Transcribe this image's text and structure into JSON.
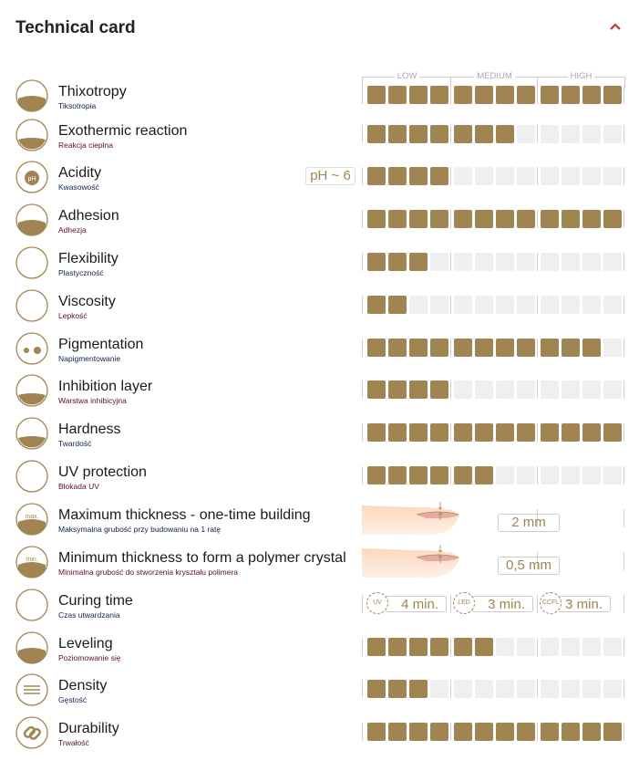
{
  "header": {
    "title": "Technical card",
    "collapse_icon": "chevron-up-icon",
    "accent": "#c0392b"
  },
  "scale": {
    "labels": [
      "LOW",
      "MEDIUM",
      "HIGH"
    ],
    "total_boxes": 12,
    "filled_color": "#a08552",
    "empty_color": "#efefef"
  },
  "rows": [
    {
      "name": "Thixotropy",
      "sub": "Tiksotropia",
      "icon": "thixotropy-icon",
      "level": 12
    },
    {
      "name": "Exothermic reaction",
      "sub": "Reakcja cieplna",
      "icon": "heat-icon",
      "level": 7
    },
    {
      "name": "Acidity",
      "sub": "Kwasowość",
      "icon": "ph-icon",
      "level": 4,
      "badge": "pH ~ 6"
    },
    {
      "name": "Adhesion",
      "sub": "Adhezja",
      "icon": "adhesion-icon",
      "level": 12
    },
    {
      "name": "Flexibility",
      "sub": "Plastyczność",
      "icon": "flexibility-icon",
      "level": 3
    },
    {
      "name": "Viscosity",
      "sub": "Lepkość",
      "icon": "viscosity-icon",
      "level": 2
    },
    {
      "name": "Pigmentation",
      "sub": "Napigmentowanie",
      "icon": "pigment-drops-icon",
      "level": 11
    },
    {
      "name": "Inhibition layer",
      "sub": "Warstwa inhibicyjna",
      "icon": "inhibition-layer-icon",
      "level": 4
    },
    {
      "name": "Hardness",
      "sub": "Twardość",
      "icon": "hammer-icon",
      "level": 12
    },
    {
      "name": "UV protection",
      "sub": "Blokada UV",
      "icon": "uv-sun-icon",
      "level": 6
    },
    {
      "name": "Maximum thickness - one-time building",
      "sub": "Maksymalna grubość przy budowaniu na 1 ratę",
      "icon": "max-thickness-icon",
      "value": "2 mm",
      "icon_text": "max."
    },
    {
      "name": "Minimum thickness to form a polymer crystal",
      "sub": "Minimalna grubość do stworzenia kryształu polimera",
      "icon": "min-thickness-icon",
      "value": "0,5 mm",
      "icon_text": "min."
    },
    {
      "name": "Curing time",
      "sub": "Czas utwardzania",
      "icon": "lamp-icon",
      "curing": [
        {
          "lamp": "UV",
          "time": "4 min."
        },
        {
          "lamp": "LED",
          "time": "3 min."
        },
        {
          "lamp": "CCFL",
          "time": "3 min."
        }
      ]
    },
    {
      "name": "Leveling",
      "sub": "Poziomowanie się",
      "icon": "leveling-icon",
      "level": 6
    },
    {
      "name": "Density",
      "sub": "Gęstość",
      "icon": "density-icon",
      "level": 3
    },
    {
      "name": "Durability",
      "sub": "Trwałość",
      "icon": "chain-link-icon",
      "level": 12
    }
  ]
}
